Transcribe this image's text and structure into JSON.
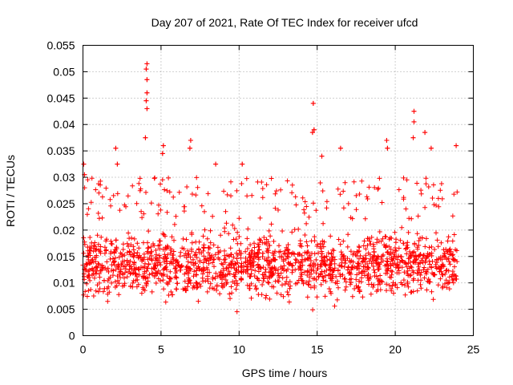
{
  "chart_data": {
    "type": "scatter",
    "title": "Day 207 of 2021, Rate Of TEC Index for receiver ufcd",
    "xlabel": "GPS time / hours",
    "ylabel": "ROTI / TECUs",
    "xlim": [
      0,
      25
    ],
    "ylim": [
      0,
      0.055
    ],
    "x_ticks": [
      0,
      5,
      10,
      15,
      20,
      25
    ],
    "x_tick_labels": [
      "0",
      "5",
      "10",
      "15",
      "20",
      "25"
    ],
    "y_ticks": [
      0,
      0.005,
      0.01,
      0.015,
      0.02,
      0.025,
      0.03,
      0.035,
      0.04,
      0.045,
      0.05,
      0.055
    ],
    "y_tick_labels": [
      "0",
      "0.005",
      "0.01",
      "0.015",
      "0.02",
      "0.025",
      "0.03",
      "0.035",
      "0.04",
      "0.045",
      "0.05",
      "0.055"
    ],
    "grid": true,
    "marker": "plus",
    "series": [
      {
        "name": "ROTI",
        "color": "#ff0000",
        "x_range": [
          0,
          24
        ],
        "typical_band": [
          0.005,
          0.022
        ],
        "peaks": [
          {
            "x": 4.1,
            "y": 0.0515
          },
          {
            "x": 4.05,
            "y": 0.0505
          },
          {
            "x": 4.1,
            "y": 0.0485
          },
          {
            "x": 4.1,
            "y": 0.046
          },
          {
            "x": 4.05,
            "y": 0.0445
          },
          {
            "x": 4.1,
            "y": 0.043
          },
          {
            "x": 4.0,
            "y": 0.0375
          },
          {
            "x": 14.75,
            "y": 0.044
          },
          {
            "x": 14.8,
            "y": 0.039
          },
          {
            "x": 14.7,
            "y": 0.0385
          },
          {
            "x": 21.2,
            "y": 0.0425
          },
          {
            "x": 21.2,
            "y": 0.0405
          },
          {
            "x": 21.15,
            "y": 0.0375
          },
          {
            "x": 21.9,
            "y": 0.0385
          },
          {
            "x": 6.9,
            "y": 0.037
          },
          {
            "x": 6.85,
            "y": 0.0355
          },
          {
            "x": 19.45,
            "y": 0.037
          },
          {
            "x": 19.5,
            "y": 0.0355
          },
          {
            "x": 2.1,
            "y": 0.0355
          },
          {
            "x": 5.15,
            "y": 0.036
          },
          {
            "x": 5.1,
            "y": 0.0345
          },
          {
            "x": 22.3,
            "y": 0.0355
          },
          {
            "x": 23.9,
            "y": 0.036
          },
          {
            "x": 0.05,
            "y": 0.0325
          },
          {
            "x": 16.5,
            "y": 0.0355
          },
          {
            "x": 15.3,
            "y": 0.034
          },
          {
            "x": 2.2,
            "y": 0.0325
          },
          {
            "x": 10.2,
            "y": 0.0325
          },
          {
            "x": 8.5,
            "y": 0.0325
          },
          {
            "x": 0.1,
            "y": 0.0305
          }
        ]
      }
    ]
  }
}
